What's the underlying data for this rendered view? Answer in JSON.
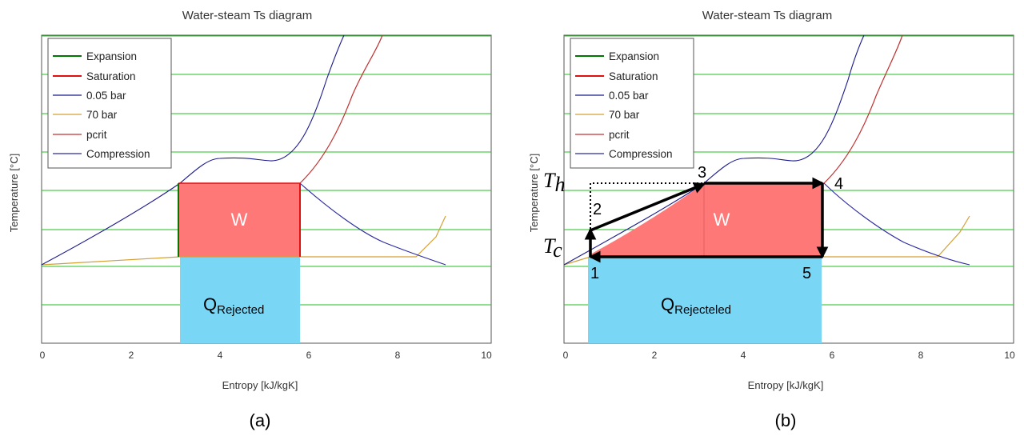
{
  "panels": [
    {
      "caption": "(a)",
      "title": "Water-steam Ts diagram",
      "ylabel": "Temperature [°C]",
      "xlabel": "Entropy [kJ/kgK]",
      "xticks": [
        "0",
        "2",
        "4",
        "6",
        "8",
        "10"
      ],
      "legend": [
        "Expansion",
        "Saturation",
        "0.05 bar",
        "70 bar",
        "pcrit",
        "Compression"
      ],
      "work_label": "W",
      "heat_label_main": "Q",
      "heat_label_sub": "Rejected"
    },
    {
      "caption": "(b)",
      "title": "Water-steam Ts diagram",
      "ylabel": "Temperature [°C]",
      "xlabel": "Entropy [kJ/kgK]",
      "xticks": [
        "0",
        "2",
        "4",
        "6",
        "8",
        "10"
      ],
      "legend": [
        "Expansion",
        "Saturation",
        "0.05 bar",
        "70 bar",
        "pcrit",
        "Compression"
      ],
      "work_label": "W",
      "heat_label_main": "Q",
      "heat_label_sub": "Rejecteled",
      "point_labels": [
        "1",
        "2",
        "3",
        "4",
        "5"
      ],
      "th_main": "T",
      "th_sub": "h",
      "tc_main": "T",
      "tc_sub": "c"
    }
  ],
  "colors": {
    "grid": "#22c222",
    "expansion": "#007700",
    "saturation": "#e01010",
    "low_pressure": "#1a1a8c",
    "high_pressure": "#d4a035",
    "pcrit": "#c03030",
    "compression": "#2a2aa0",
    "work_fill": "#ff7878",
    "heat_fill": "#7ad6f5",
    "cycle": "#000000"
  }
}
